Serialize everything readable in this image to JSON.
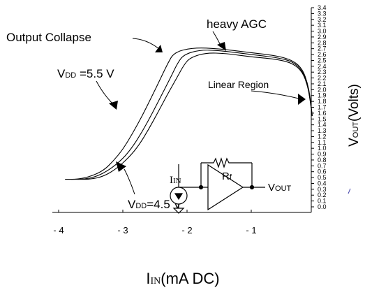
{
  "chart_data": {
    "type": "line",
    "xlabel": {
      "main": "I",
      "sub": "IN",
      "rest": "(mA DC)"
    },
    "ylabel": {
      "main": "V",
      "sub": "OUT",
      "rest": "(Volts)"
    },
    "xlim": [
      -4.1,
      -0.03
    ],
    "ylim": [
      0.0,
      3.4
    ],
    "xticks": [
      -4,
      -3,
      -2,
      -1
    ],
    "xtick_labels": [
      "- 4",
      "- 3",
      "- 2",
      "- 1"
    ],
    "yticks": [
      0.0,
      0.1,
      0.2,
      0.3,
      0.4,
      0.5,
      0.6,
      0.7,
      0.8,
      0.9,
      1.0,
      1.1,
      1.2,
      1.3,
      1.4,
      1.5,
      1.6,
      1.7,
      1.8,
      1.9,
      2.0,
      2.1,
      2.2,
      2.3,
      2.4,
      2.5,
      2.6,
      2.7,
      2.8,
      2.9,
      3.0,
      3.1,
      3.2,
      3.3,
      3.4
    ],
    "ytick_labels": [
      "0.0",
      "0.1",
      "0.2",
      "0.3",
      "0.4",
      "0.5",
      "0.6",
      "0.7",
      "0.8",
      "0.9",
      "1.0",
      "1.1",
      "1.2",
      "1.3",
      "1.4",
      "1.5",
      "1.6",
      "1.7",
      "1.8",
      "1.9",
      "2.0",
      "2.1",
      "2.2",
      "2.3",
      "2.4",
      "2.5",
      "2.6",
      "2.7",
      "2.8",
      "2.9",
      "3.0",
      "3.1",
      "3.2",
      "3.3",
      "3.4"
    ],
    "series": [
      {
        "x": [
          -3.9,
          -3.7,
          -3.5,
          -3.3,
          -3.15,
          -3.0,
          -2.85,
          -2.7,
          -2.55,
          -2.4,
          -2.3,
          -2.2,
          -1.9,
          -1.5,
          -1.0,
          -0.6,
          -0.35,
          -0.2,
          -0.12,
          -0.08,
          -0.05
        ],
        "y": [
          0.47,
          0.47,
          0.52,
          0.62,
          0.78,
          0.98,
          1.25,
          1.55,
          1.88,
          2.22,
          2.45,
          2.64,
          2.72,
          2.7,
          2.63,
          2.58,
          2.5,
          2.35,
          2.1,
          1.85,
          1.55
        ]
      },
      {
        "x": [
          -3.8,
          -3.6,
          -3.4,
          -3.2,
          -3.0,
          -2.85,
          -2.7,
          -2.55,
          -2.4,
          -2.25,
          -2.15,
          -2.05,
          -1.8,
          -1.5,
          -1.0,
          -0.6,
          -0.35,
          -0.2,
          -0.12,
          -0.08,
          -0.05
        ],
        "y": [
          0.47,
          0.47,
          0.52,
          0.64,
          0.82,
          1.02,
          1.28,
          1.58,
          1.9,
          2.22,
          2.45,
          2.6,
          2.68,
          2.67,
          2.6,
          2.55,
          2.48,
          2.32,
          2.08,
          1.82,
          1.55
        ]
      },
      {
        "x": [
          -3.7,
          -3.5,
          -3.3,
          -3.1,
          -2.9,
          -2.75,
          -2.6,
          -2.45,
          -2.3,
          -2.15,
          -2.05,
          -1.95,
          -1.7,
          -1.4,
          -1.0,
          -0.6,
          -0.35,
          -0.2,
          -0.12,
          -0.08,
          -0.05
        ],
        "y": [
          0.47,
          0.47,
          0.52,
          0.65,
          0.85,
          1.05,
          1.32,
          1.62,
          1.93,
          2.22,
          2.42,
          2.55,
          2.63,
          2.62,
          2.56,
          2.52,
          2.45,
          2.3,
          2.06,
          1.8,
          1.55
        ]
      }
    ],
    "annotations": {
      "output_collapse": "Output Collapse",
      "heavy_agc": "heavy AGC",
      "vdd_high": {
        "main": "V",
        "sub": "DD",
        "rest": " =5.5 V"
      },
      "vdd_low": {
        "main": "V",
        "sub": "DD",
        "rest": "=4.5 V"
      },
      "linear_region": "Linear Region"
    },
    "circuit": {
      "rf": {
        "main": "R",
        "sub": "f"
      },
      "iin": {
        "main": "I",
        "sub": "IN"
      },
      "vout": {
        "main": "V",
        "sub": "OUT"
      }
    },
    "grid": false,
    "colors": {
      "line": "#000000",
      "background": "#ffffff"
    }
  }
}
